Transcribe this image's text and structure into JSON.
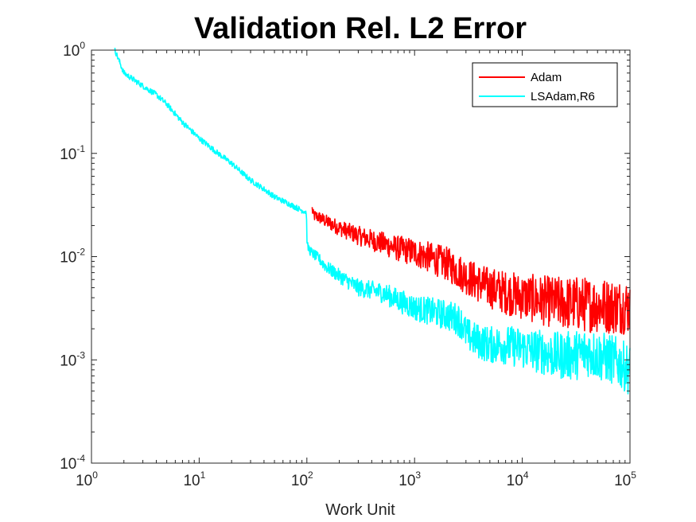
{
  "chart_data": {
    "type": "line",
    "title": "Validation Rel. L2 Error",
    "xlabel": "Work Unit",
    "ylabel": "",
    "xscale": "log",
    "yscale": "log",
    "xlim": [
      1,
      100000
    ],
    "ylim": [
      0.0001,
      1
    ],
    "x_ticks": [
      {
        "base": "10",
        "exp": "0"
      },
      {
        "base": "10",
        "exp": "1"
      },
      {
        "base": "10",
        "exp": "2"
      },
      {
        "base": "10",
        "exp": "3"
      },
      {
        "base": "10",
        "exp": "4"
      },
      {
        "base": "10",
        "exp": "5"
      }
    ],
    "y_ticks": [
      {
        "base": "10",
        "exp": "-4"
      },
      {
        "base": "10",
        "exp": "-3"
      },
      {
        "base": "10",
        "exp": "-2"
      },
      {
        "base": "10",
        "exp": "-1"
      },
      {
        "base": "10",
        "exp": "0"
      }
    ],
    "grid": false,
    "legend_position": "top-right",
    "series": [
      {
        "name": "Adam",
        "color": "#ff0000",
        "noisy": true,
        "x": [
          112,
          115,
          130,
          150,
          200,
          300,
          400,
          500,
          700,
          1000,
          1500,
          2000,
          3000,
          4000,
          5000,
          7000,
          10000,
          15000,
          20000,
          30000,
          50000,
          70000,
          100000
        ],
        "y": [
          0.029,
          0.025,
          0.024,
          0.022,
          0.019,
          0.016,
          0.0145,
          0.0135,
          0.012,
          0.011,
          0.0095,
          0.0085,
          0.0065,
          0.0055,
          0.005,
          0.0045,
          0.0041,
          0.0038,
          0.0036,
          0.0035,
          0.0034,
          0.0033,
          0.0033
        ]
      },
      {
        "name": "LSAdam,R6",
        "color": "#00ffff",
        "noisy": true,
        "x": [
          1.65,
          2,
          3,
          4,
          5,
          7,
          10,
          15,
          20,
          25,
          30,
          40,
          50,
          70,
          90,
          99,
          100,
          101,
          110,
          130,
          150,
          200,
          300,
          500,
          700,
          1000,
          1500,
          2000,
          2500,
          2800,
          3000,
          3500,
          4000,
          5000,
          7000,
          10000,
          15000,
          20000,
          30000,
          40000,
          50000,
          70000,
          100000
        ],
        "y": [
          1.0,
          0.6,
          0.45,
          0.37,
          0.3,
          0.2,
          0.14,
          0.1,
          0.08,
          0.065,
          0.055,
          0.045,
          0.038,
          0.032,
          0.028,
          0.027,
          0.016,
          0.0125,
          0.011,
          0.0095,
          0.008,
          0.0065,
          0.005,
          0.0045,
          0.0038,
          0.0032,
          0.0029,
          0.0027,
          0.0025,
          0.0022,
          0.0018,
          0.0016,
          0.0015,
          0.0014,
          0.0014,
          0.0013,
          0.0012,
          0.0011,
          0.0011,
          0.0012,
          0.0011,
          0.001,
          0.0008
        ]
      }
    ]
  }
}
